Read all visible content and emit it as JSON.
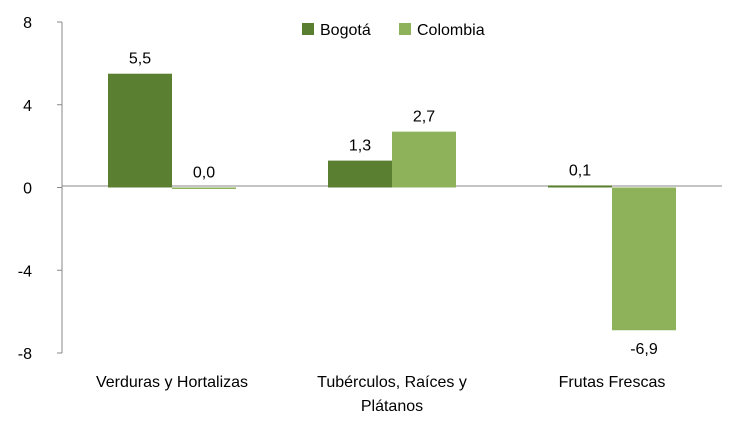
{
  "chart_data": {
    "type": "bar",
    "categories": [
      [
        "Verduras y Hortalizas"
      ],
      [
        "Tubérculos, Raíces y",
        "Plátanos"
      ],
      [
        "Frutas Frescas"
      ]
    ],
    "series": [
      {
        "name": "Bogotá",
        "values": [
          5.5,
          1.3,
          0.1
        ],
        "labels": [
          "5,5",
          "1,3",
          "0,1"
        ],
        "color": "#5a7f30"
      },
      {
        "name": "Colombia",
        "values": [
          0.0,
          2.7,
          -6.9
        ],
        "labels": [
          "0,0",
          "2,7",
          "-6,9"
        ],
        "color": "#8db25a"
      }
    ],
    "ylim": [
      -8,
      8
    ],
    "yticks": [
      8,
      4,
      0,
      -4,
      -8
    ],
    "ytick_labels": [
      "8",
      "4",
      "0",
      "-4",
      "-8"
    ],
    "title": "",
    "xlabel": "",
    "ylabel": "",
    "grid": false,
    "legend_position": "top"
  }
}
